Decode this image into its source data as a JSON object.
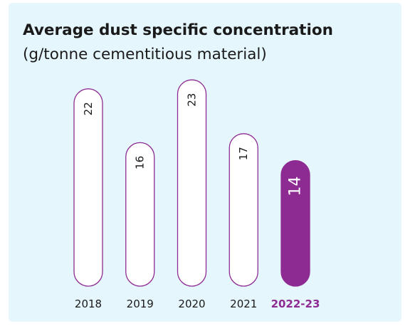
{
  "chart_data": {
    "type": "bar",
    "title": "Average dust specific concentration",
    "subtitle": "(g/tonne cementitious material)",
    "categories": [
      "2018",
      "2019",
      "2020",
      "2021",
      "2022-23"
    ],
    "values": [
      22,
      16,
      23,
      17,
      14
    ],
    "highlight_index": 4,
    "grid": false,
    "legend": "none"
  },
  "colors": {
    "accent": "#8e2b93",
    "bar_fill": "#ffffff",
    "background": "#e6f6fd",
    "text": "#1a1a1a"
  }
}
